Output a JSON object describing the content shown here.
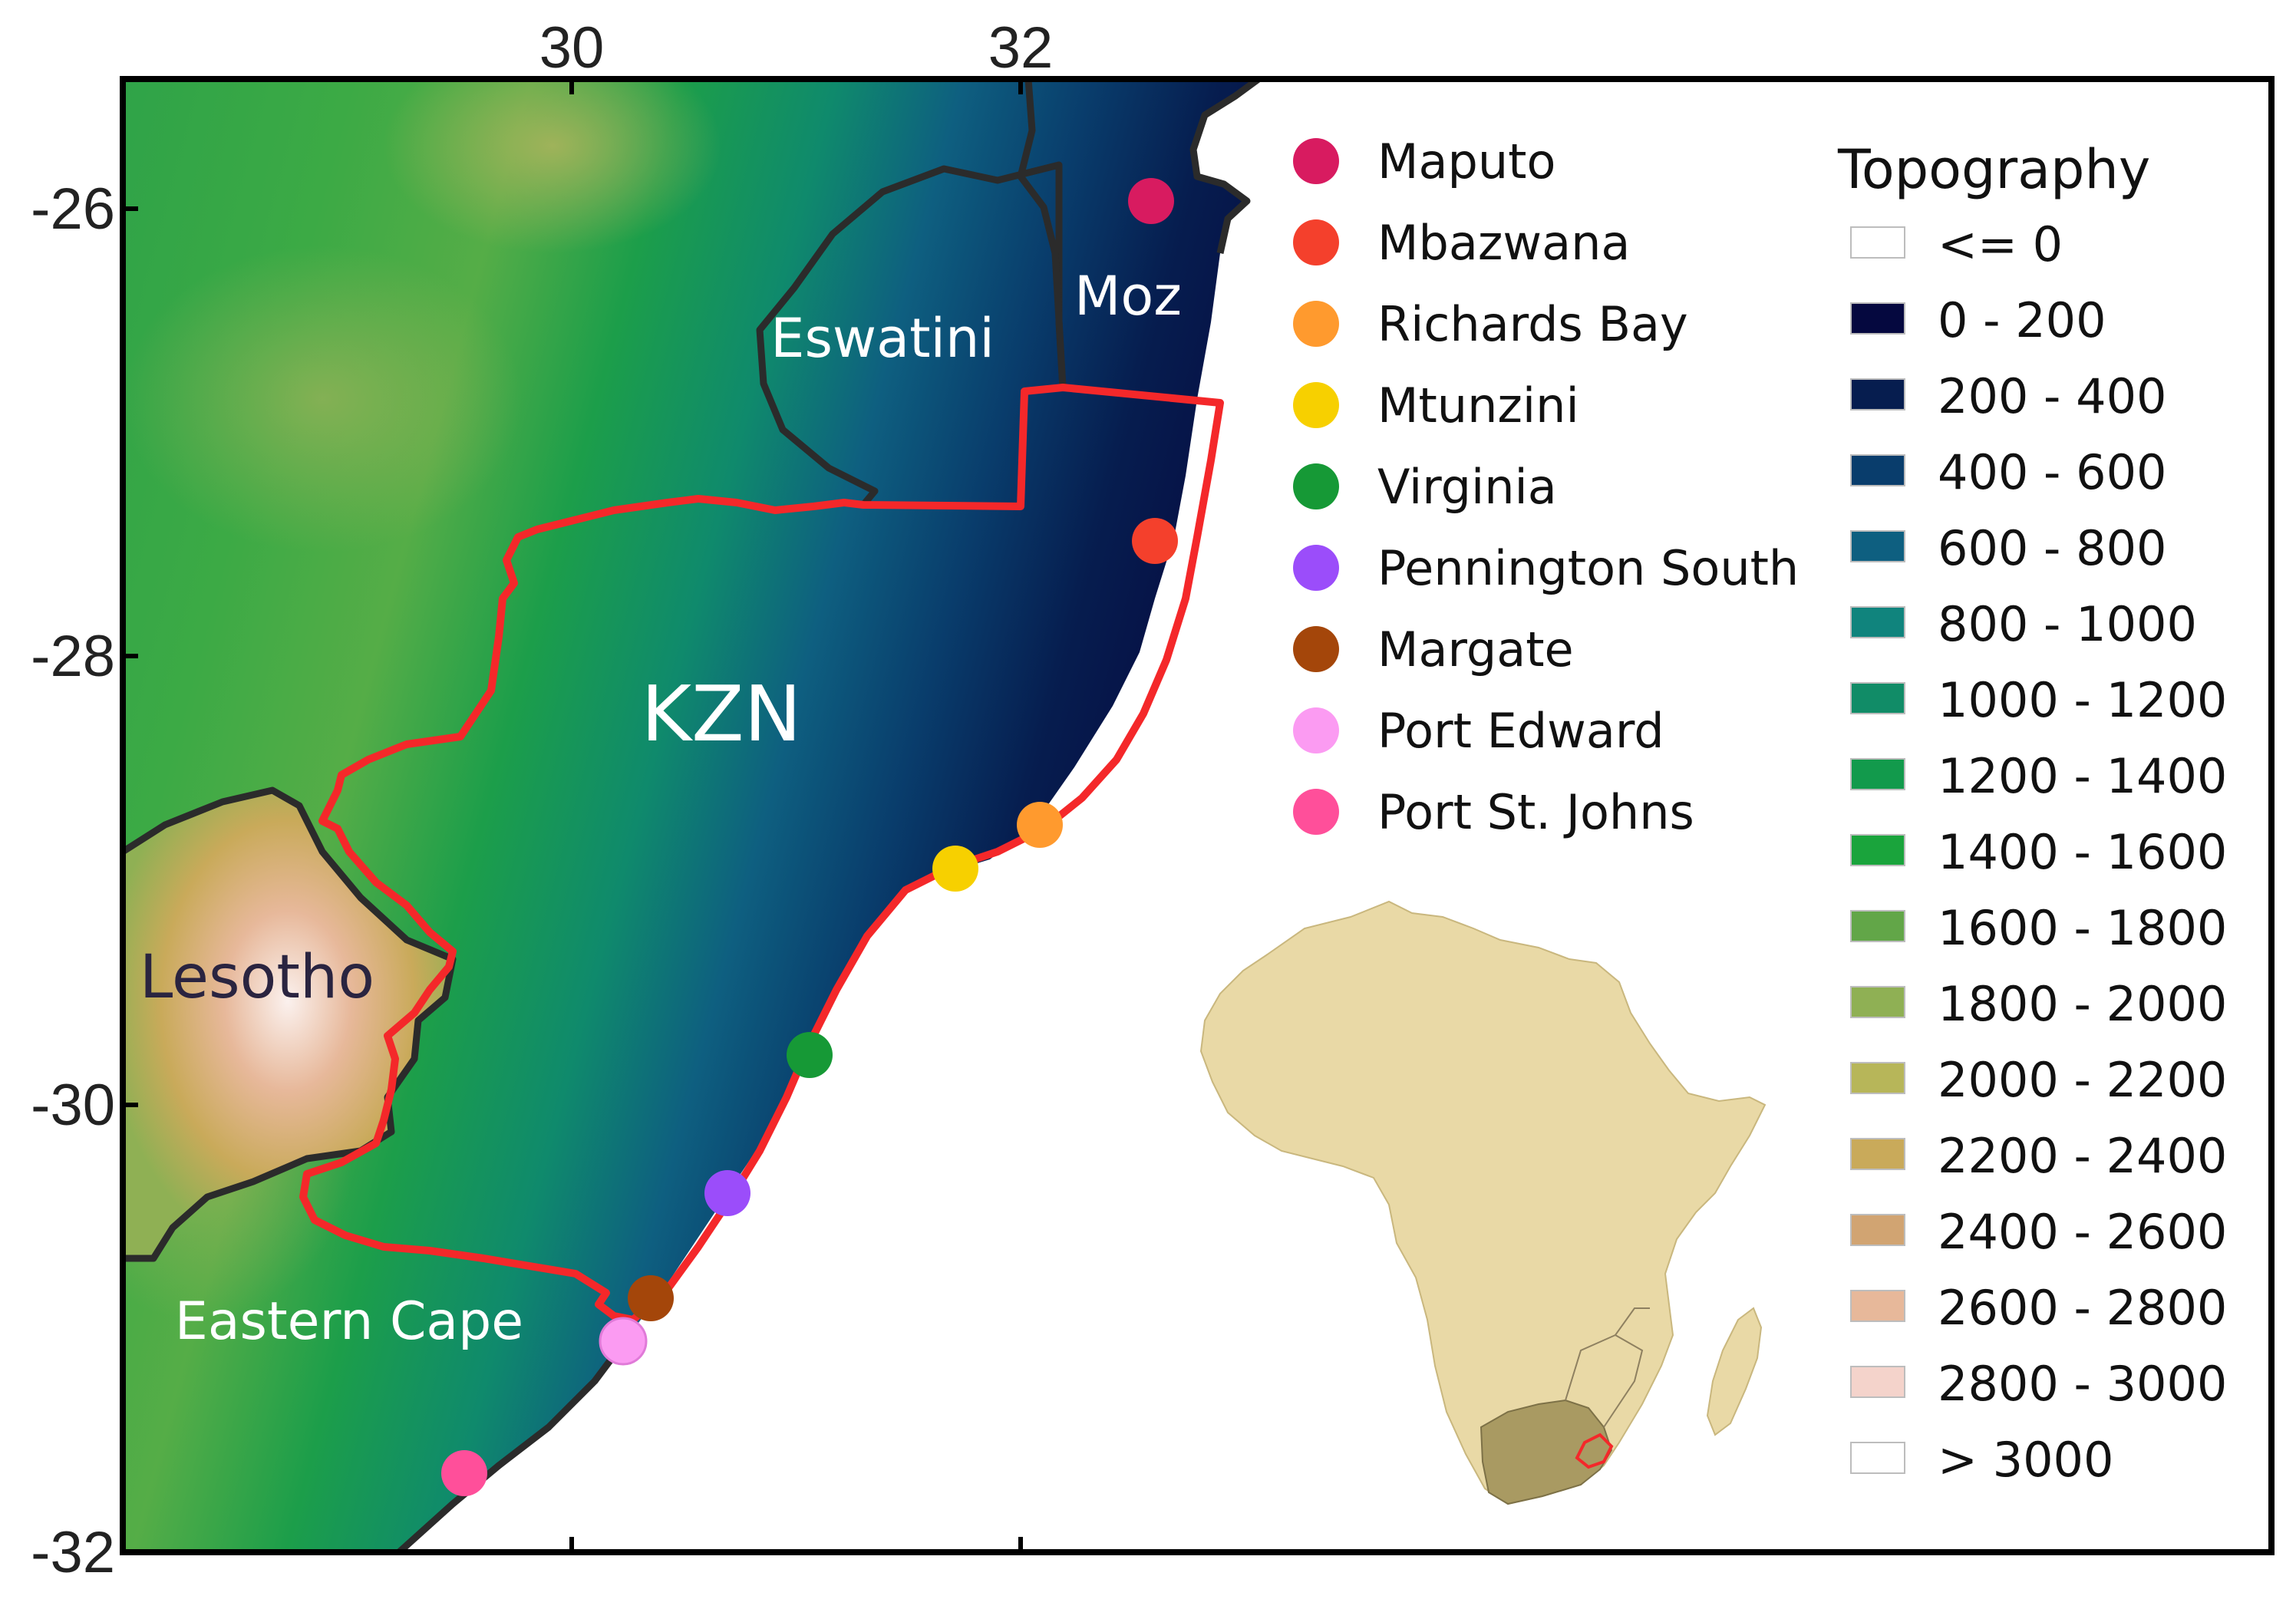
{
  "axes": {
    "x_ticks": [
      "30",
      "32"
    ],
    "y_ticks": [
      "-26",
      "-28",
      "-30",
      "-32"
    ]
  },
  "region_labels": {
    "kzn": "KZN",
    "eswatini": "Eswatini",
    "moz": "Moz",
    "lesotho": "Lesotho",
    "eastern_cape": "Eastern Cape"
  },
  "locations": [
    {
      "name": "Maputo",
      "color": "#d81b60"
    },
    {
      "name": "Mbazwana",
      "color": "#f4402c"
    },
    {
      "name": "Richards Bay",
      "color": "#ff9a2e"
    },
    {
      "name": "Mtunzini",
      "color": "#f7d000"
    },
    {
      "name": "Virginia",
      "color": "#169936"
    },
    {
      "name": "Pennington South",
      "color": "#9b4dfa"
    },
    {
      "name": "Margate",
      "color": "#a4460a"
    },
    {
      "name": "Port Edward",
      "color": "#fb9bf2"
    },
    {
      "name": "Port St. Johns",
      "color": "#ff4f9a"
    }
  ],
  "topography": {
    "title": "Topography",
    "classes": [
      {
        "label": "<= 0",
        "color": "#ffffff"
      },
      {
        "label": "0 - 200",
        "color": "#05083f"
      },
      {
        "label": "200 - 400",
        "color": "#061d4f"
      },
      {
        "label": "400 - 600",
        "color": "#093d6c"
      },
      {
        "label": "600 - 800",
        "color": "#0e5f80"
      },
      {
        "label": "800 - 1000",
        "color": "#10847d"
      },
      {
        "label": "1000 - 1200",
        "color": "#118c67"
      },
      {
        "label": "1200 - 1400",
        "color": "#129a4c"
      },
      {
        "label": "1400 - 1600",
        "color": "#1aa43c"
      },
      {
        "label": "1600 - 1800",
        "color": "#62a648"
      },
      {
        "label": "1800 - 2000",
        "color": "#8fb054"
      },
      {
        "label": "2000 - 2200",
        "color": "#b7b659"
      },
      {
        "label": "2200 - 2400",
        "color": "#c9aa5a"
      },
      {
        "label": "2400 - 2600",
        "color": "#d1a472"
      },
      {
        "label": "2600 - 2800",
        "color": "#e7b89a"
      },
      {
        "label": "2800 - 3000",
        "color": "#f4d3cb"
      },
      {
        "label": "> 3000",
        "color": "#ffffff"
      }
    ]
  },
  "colors": {
    "kzn_border": "#f4282a",
    "country_border": "#2b2b2b",
    "africa_fill": "#e9d9a6",
    "south_africa_fill": "#a99a62"
  }
}
